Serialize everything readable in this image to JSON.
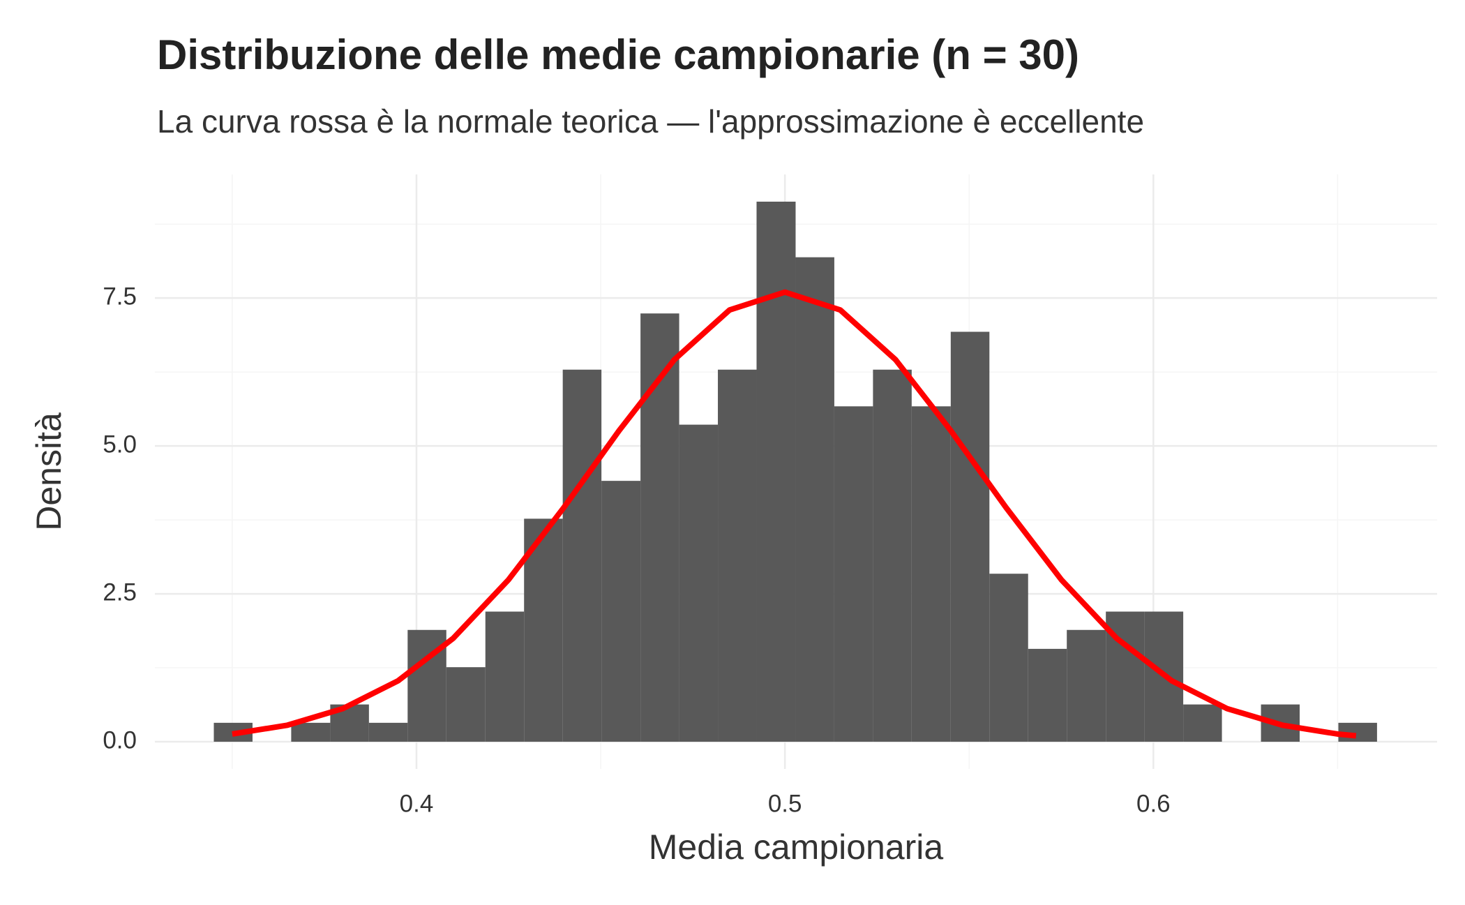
{
  "chart_data": {
    "type": "histogram",
    "title": "Distribuzione delle medie campionarie (n = 30)",
    "subtitle": "La curva rossa è la normale teorica — l'approssimazione è eccellente",
    "x_label": "Media campionaria",
    "y_label": "Densità",
    "bins": [
      0.345,
      0.3555,
      0.366,
      0.3766,
      0.3871,
      0.3976,
      0.4081,
      0.4187,
      0.4292,
      0.4397,
      0.4502,
      0.4608,
      0.4713,
      0.4818,
      0.4923,
      0.5029,
      0.5134,
      0.5239,
      0.5344,
      0.545,
      0.5555,
      0.566,
      0.5765,
      0.5871,
      0.5976,
      0.6081,
      0.6186,
      0.6292,
      0.6397,
      0.6502,
      0.6607
    ],
    "values": [
      0.32,
      0,
      0.32,
      0.63,
      0.32,
      1.89,
      1.26,
      2.2,
      3.77,
      6.29,
      4.41,
      7.24,
      5.36,
      6.29,
      9.13,
      8.19,
      5.67,
      6.29,
      5.67,
      6.93,
      2.84,
      1.57,
      1.89,
      2.2,
      2.2,
      0.63,
      0,
      0.63,
      0,
      0.32
    ],
    "color": "#595959",
    "curve": {
      "color": "#ff0000",
      "x": [
        0.35,
        0.365,
        0.38,
        0.395,
        0.41,
        0.425,
        0.44,
        0.455,
        0.47,
        0.485,
        0.5,
        0.515,
        0.53,
        0.545,
        0.56,
        0.575,
        0.59,
        0.605,
        0.62,
        0.635,
        0.65,
        0.655
      ],
      "values": [
        0.13,
        0.28,
        0.56,
        1.03,
        1.75,
        2.74,
        3.96,
        5.26,
        6.46,
        7.3,
        7.6,
        7.3,
        6.46,
        5.26,
        3.96,
        2.74,
        1.75,
        1.03,
        0.56,
        0.28,
        0.13,
        0.1
      ]
    },
    "xlim": [
      0.329,
      0.677
    ],
    "ylim": [
      -0.46,
      9.59
    ],
    "xticks": [
      0.4,
      0.5,
      0.6
    ],
    "yticks": [
      {
        "value": 0,
        "label": "0.0"
      },
      2.5,
      {
        "value": 5,
        "label": "5.0"
      },
      7.5
    ],
    "minor_xticks": [
      0.35,
      0.45,
      0.55,
      0.65
    ],
    "minor_yticks": [
      1.25,
      3.75,
      6.25,
      8.75
    ],
    "grid": true
  }
}
